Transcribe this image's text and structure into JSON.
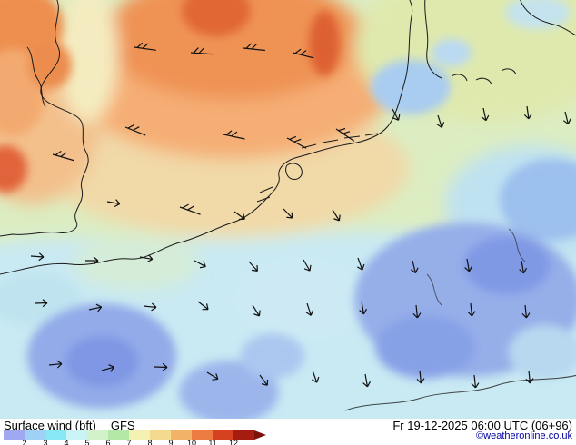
{
  "footer": {
    "product": "Surface wind (bft)",
    "model": "GFS",
    "datetime": "Fr 19-12-2025 06:00 UTC (06+96)",
    "copyright": "©weatheronline.co.uk"
  },
  "legend": {
    "unit": "bft",
    "ticks": [
      "2",
      "3",
      "4",
      "5",
      "6",
      "7",
      "8",
      "9",
      "10",
      "11",
      "12"
    ],
    "colors": [
      "#a0a8f2",
      "#9fd0f6",
      "#86e8f2",
      "#c9f3f5",
      "#d4f2c9",
      "#b4e8a6",
      "#f4f2b2",
      "#f4da8e",
      "#f2b369",
      "#ec7b42",
      "#d6411f",
      "#a61c10"
    ],
    "arrow_color": "#7c120a"
  }
}
